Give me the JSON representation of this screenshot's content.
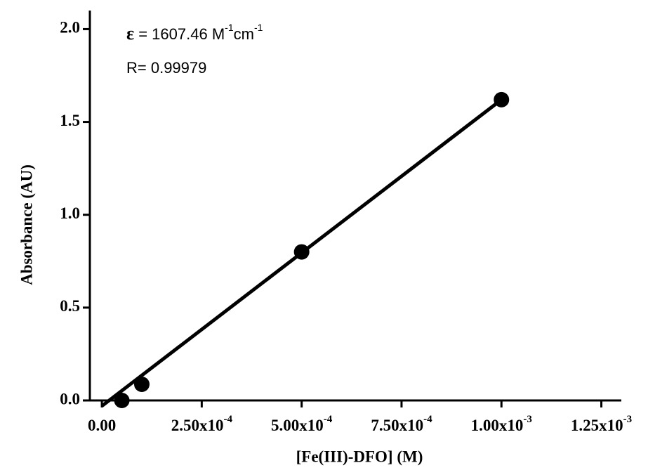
{
  "chart_data": {
    "type": "scatter",
    "xlabel": "[Fe(III)-DFO]  (M)",
    "ylabel": "Absorbance (AU)",
    "annotations": [
      {
        "segments": [
          {
            "text": "ε"
          },
          {
            "text": " = 1607.46 M"
          },
          {
            "text": "-1",
            "sup": true
          },
          {
            "text": "cm"
          },
          {
            "text": "-1",
            "sup": true
          }
        ]
      },
      {
        "segments": [
          {
            "text": "R=  0.99979"
          }
        ]
      }
    ],
    "x": [
      5e-05,
      0.0001,
      0.0005,
      0.001
    ],
    "series": [
      {
        "color": "#000000",
        "values": [
          0.0,
          0.087,
          0.8,
          1.62
        ]
      }
    ],
    "fit": {
      "color": "#000000",
      "x": [
        0.0,
        0.001
      ],
      "values": [
        -0.03,
        1.62
      ]
    },
    "xlim": [
      -3e-05,
      0.0013
    ],
    "ylim": [
      0,
      2.1
    ],
    "xticks": [
      {
        "value": 0,
        "label": "0.00"
      },
      {
        "value": 0.00025,
        "label": "2.50x10",
        "exponent": "-4"
      },
      {
        "value": 0.0005,
        "label": "5.00x10",
        "exponent": "-4"
      },
      {
        "value": 0.00075,
        "label": "7.50x10",
        "exponent": "-4"
      },
      {
        "value": 0.001,
        "label": "1.00x10",
        "exponent": "-3"
      },
      {
        "value": 0.00125,
        "label": "1.25x10",
        "exponent": "-3"
      }
    ],
    "yticks": [
      {
        "value": 0,
        "label": "0.0"
      },
      {
        "value": 0.5,
        "label": "0.5"
      },
      {
        "value": 1,
        "label": "1.0"
      },
      {
        "value": 1.5,
        "label": "1.5"
      },
      {
        "value": 2,
        "label": "2.0"
      }
    ],
    "grid": false
  }
}
